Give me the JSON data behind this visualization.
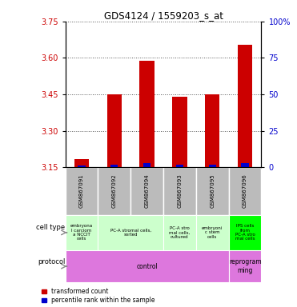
{
  "title": "GDS4124 / 1559203_s_at",
  "samples": [
    "GSM867091",
    "GSM867092",
    "GSM867094",
    "GSM867093",
    "GSM867095",
    "GSM867096"
  ],
  "red_values": [
    3.185,
    3.45,
    3.59,
    3.44,
    3.45,
    3.655
  ],
  "blue_values": [
    3.158,
    3.162,
    3.168,
    3.162,
    3.162,
    3.168
  ],
  "ylim_left": [
    3.15,
    3.75
  ],
  "ylim_right": [
    0,
    100
  ],
  "left_ticks": [
    3.15,
    3.3,
    3.45,
    3.6,
    3.75
  ],
  "right_ticks": [
    0,
    25,
    50,
    75,
    100
  ],
  "cell_types": [
    {
      "label": "embryona\nl carciom\na NCCIT\ncells",
      "span": [
        0,
        1
      ],
      "color": "#ccffcc"
    },
    {
      "label": "PC-A stromal cells,\nsorted",
      "span": [
        1,
        3
      ],
      "color": "#ccffcc"
    },
    {
      "label": "PC-A stro\nmal cells,\ncultured",
      "span": [
        3,
        4
      ],
      "color": "#ccffcc"
    },
    {
      "label": "embryoni\nc stem\ncells",
      "span": [
        4,
        5
      ],
      "color": "#ccffcc"
    },
    {
      "label": "IPS cells\nfrom\nPC-A stro\nmal cells",
      "span": [
        5,
        6
      ],
      "color": "#00ff00"
    }
  ],
  "protocols": [
    {
      "label": "control",
      "span": [
        0,
        5
      ],
      "color": "#dd77dd"
    },
    {
      "label": "reprogram\nming",
      "span": [
        5,
        6
      ],
      "color": "#dd77dd"
    }
  ],
  "bar_width": 0.45,
  "bar_base": 3.15,
  "red_color": "#cc0000",
  "blue_color": "#0000cc",
  "sample_bg_color": "#bbbbbb",
  "grid_color": "#888888",
  "left_label_color": "#cc0000",
  "right_label_color": "#0000cc"
}
